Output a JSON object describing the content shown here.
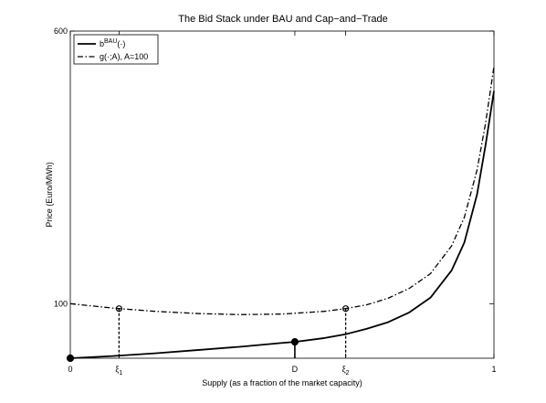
{
  "chart_data": {
    "type": "line",
    "title": "The Bid Stack under BAU and Cap−and−Trade",
    "xlabel": "Supply (as a fraction of the market capacity)",
    "ylabel": "Price (Euro/MWh)",
    "xlim": [
      0,
      1
    ],
    "ylim": [
      0,
      600
    ],
    "x_ticks": [
      {
        "value": 0,
        "label": "0"
      },
      {
        "value": 0.115,
        "label": "ξ",
        "sub": "1"
      },
      {
        "value": 0.53,
        "label": "D"
      },
      {
        "value": 0.65,
        "label": "ξ",
        "sub": "2"
      },
      {
        "value": 1,
        "label": "1"
      }
    ],
    "y_ticks": [
      {
        "value": 100,
        "label": "100"
      },
      {
        "value": 600,
        "label": "600"
      }
    ],
    "legend": {
      "position": "top-left",
      "entries": [
        {
          "label": "b",
          "sup": "BAU",
          "suffix": "(·)",
          "style": "solid"
        },
        {
          "label": "g(·;A), A=100",
          "style": "dash-dot"
        }
      ]
    },
    "series": [
      {
        "name": "b^BAU(·)",
        "style": "solid",
        "x": [
          0,
          0.1,
          0.2,
          0.3,
          0.4,
          0.5,
          0.53,
          0.6,
          0.65,
          0.7,
          0.75,
          0.8,
          0.85,
          0.9,
          0.93,
          0.96,
          0.98,
          1.0
        ],
        "y": [
          0,
          4,
          9,
          15,
          21,
          28,
          30,
          37,
          44,
          54,
          66,
          84,
          111,
          161,
          212,
          300,
          390,
          490
        ]
      },
      {
        "name": "g(·;A), A=100",
        "style": "dash-dot",
        "x": [
          0,
          0.1,
          0.115,
          0.2,
          0.3,
          0.4,
          0.5,
          0.6,
          0.65,
          0.7,
          0.75,
          0.8,
          0.85,
          0.9,
          0.93,
          0.96,
          0.98,
          1.0
        ],
        "y": [
          100,
          92,
          91,
          86,
          82,
          80,
          81,
          86,
          91,
          98,
          110,
          128,
          155,
          206,
          258,
          345,
          430,
          535
        ]
      }
    ],
    "markers": [
      {
        "x": 0,
        "y": 0,
        "fill": "filled",
        "stem": false
      },
      {
        "x": 0.53,
        "y": 30,
        "fill": "filled",
        "stem": "solid"
      },
      {
        "x": 0.115,
        "y": 91,
        "fill": "open",
        "stem": "dashed"
      },
      {
        "x": 0.65,
        "y": 91,
        "fill": "open",
        "stem": "dashed"
      }
    ]
  }
}
